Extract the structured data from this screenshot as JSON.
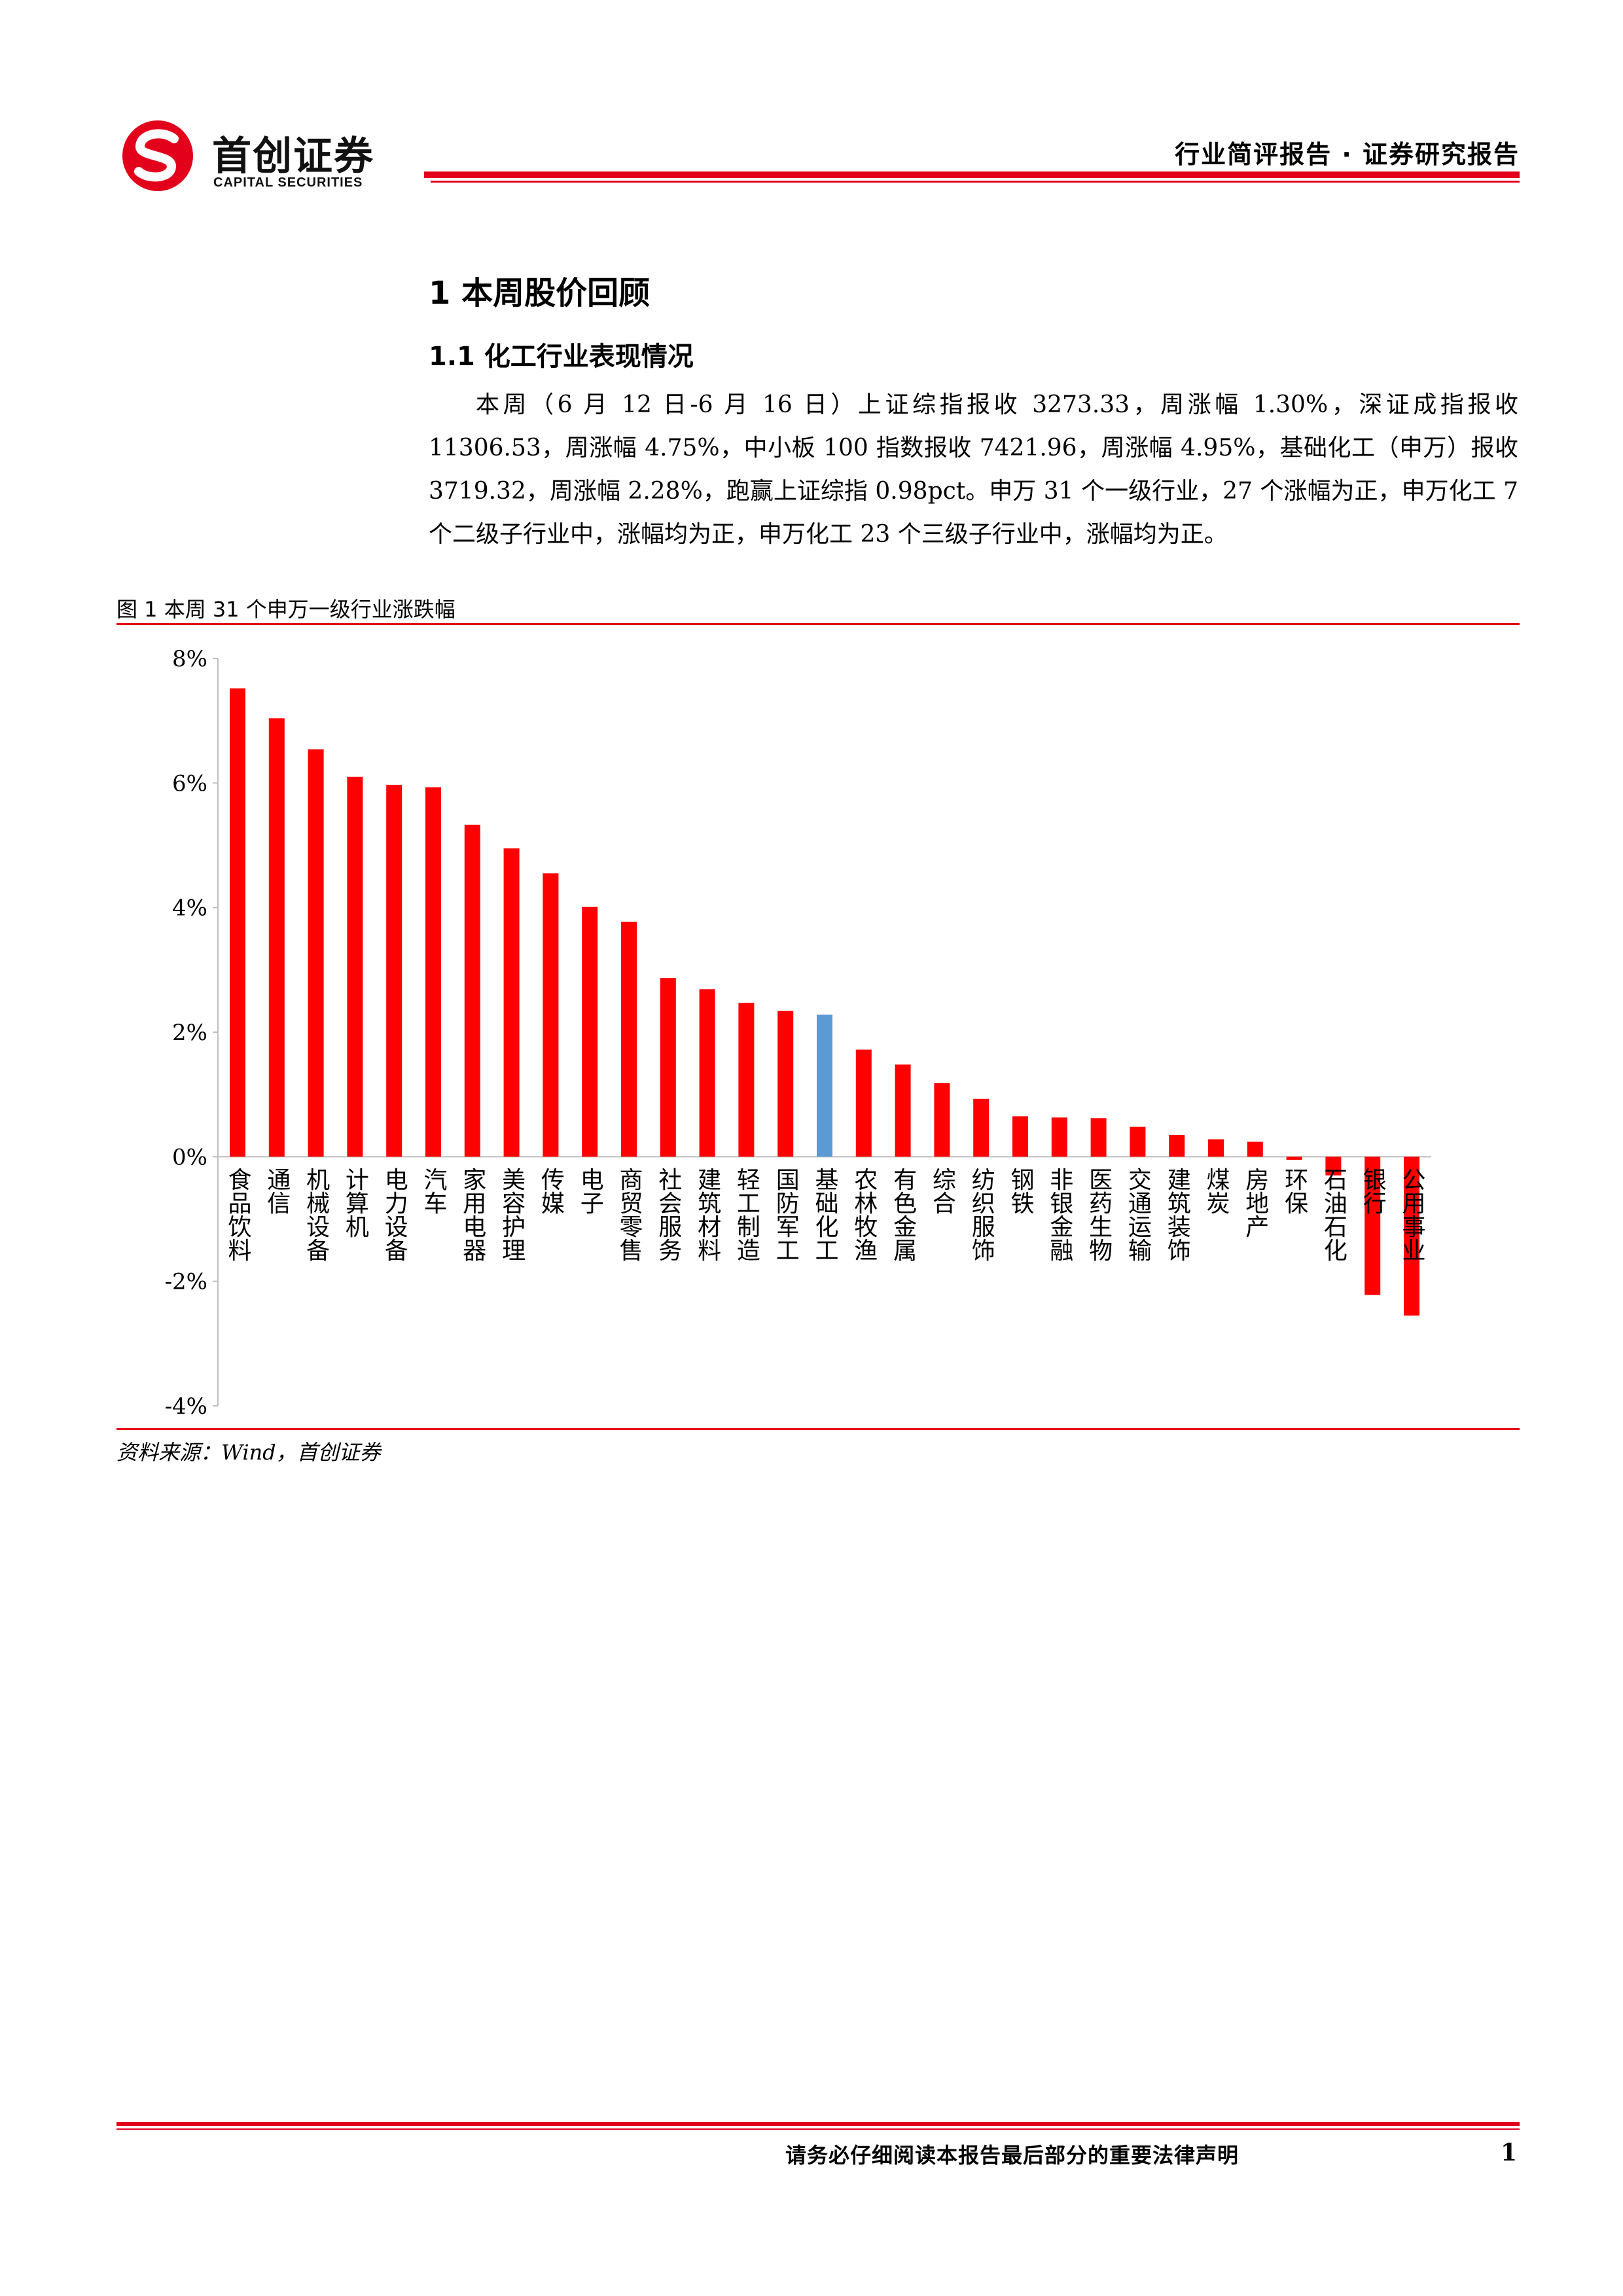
{
  "header": {
    "logo_cn": "首创证券",
    "logo_en": "CAPITAL SECURITIES",
    "report_type": "行业简评报告 · 证券研究报告"
  },
  "section": {
    "h1": "1 本周股价回顾",
    "h2": "1.1 化工行业表现情况",
    "paragraph": "本周（6 月 12 日-6 月 16 日）上证综指报收 3273.33，周涨幅 1.30%，深证成指报收 11306.53，周涨幅 4.75%，中小板 100 指数报收 7421.96，周涨幅 4.95%，基础化工（申万）报收 3719.32，周涨幅 2.28%，跑赢上证综指 0.98pct。申万 31 个一级行业，27 个涨幅为正，申万化工 7 个二级子行业中，涨幅均为正，申万化工 23 个三级子行业中，涨幅均为正。"
  },
  "figure": {
    "caption": "图 1 本周 31 个申万一级行业涨跌幅",
    "source": "资料来源：Wind，首创证券"
  },
  "chart_data": {
    "type": "bar",
    "title": "",
    "xlabel": "",
    "ylabel": "",
    "ylim": [
      -4,
      8
    ],
    "yticks": [
      -4,
      -2,
      0,
      2,
      4,
      6,
      8
    ],
    "ytick_labels": [
      "-4%",
      "-2%",
      "0%",
      "2%",
      "4%",
      "6%",
      "8%"
    ],
    "grid": false,
    "legend": "none",
    "bar_color": "#ff0000",
    "highlight_color": "#5b9bd5",
    "highlight_category": "基础化工",
    "categories": [
      "食品饮料",
      "通信",
      "机械设备",
      "计算机",
      "电力设备",
      "汽车",
      "家用电器",
      "美容护理",
      "传媒",
      "电子",
      "商贸零售",
      "社会服务",
      "建筑材料",
      "轻工制造",
      "国防军工",
      "基础化工",
      "农林牧渔",
      "有色金属",
      "综合",
      "纺织服饰",
      "钢铁",
      "非银金融",
      "医药生物",
      "交通运输",
      "建筑装饰",
      "煤炭",
      "房地产",
      "环保",
      "石油石化",
      "银行",
      "公用事业"
    ],
    "values": [
      7.52,
      7.04,
      6.54,
      6.1,
      5.97,
      5.93,
      5.33,
      4.95,
      4.55,
      4.01,
      3.77,
      2.87,
      2.69,
      2.47,
      2.34,
      2.28,
      1.72,
      1.48,
      1.18,
      0.93,
      0.65,
      0.63,
      0.62,
      0.48,
      0.35,
      0.28,
      0.24,
      -0.05,
      -0.3,
      -2.22,
      -2.55
    ]
  },
  "footer": {
    "disclaimer": "请务必仔细阅读本报告最后部分的重要法律声明",
    "page": "1"
  }
}
